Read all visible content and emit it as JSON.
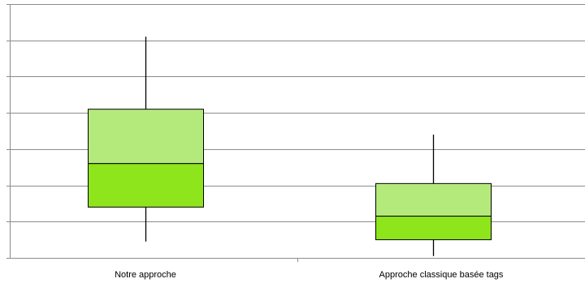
{
  "chart_data": {
    "type": "box",
    "title": "",
    "xlabel": "",
    "ylabel": "",
    "categories": [
      "Notre approche",
      "Approche classique basée tags"
    ],
    "boxes": [
      {
        "category": "Notre approche",
        "min": 0.45,
        "q1": 1.4,
        "median": 2.6,
        "q3": 4.1,
        "max": 6.1
      },
      {
        "category": "Approche classique basée tags",
        "min": 0.05,
        "q1": 0.5,
        "median": 1.15,
        "q3": 2.05,
        "max": 3.4
      }
    ],
    "ylim": [
      0,
      7
    ],
    "y_gridlines": [
      0,
      1,
      2,
      3,
      4,
      5,
      6,
      7
    ],
    "grid": true,
    "y_tick_labels_visible": false,
    "colors": {
      "lower_box": "#8ee51c",
      "upper_box": "#b4ea7c",
      "box_border": "#000000",
      "whisker": "#000000",
      "grid": "#8c8c8c",
      "axis": "#8c8c8c"
    }
  }
}
